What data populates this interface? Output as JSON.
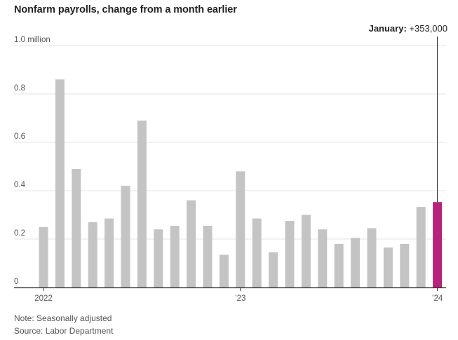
{
  "title": "Nonfarm payrolls, change from a month earlier",
  "colors": {
    "bar": "#c4c4c4",
    "highlight": "#b8237a",
    "grid": "#e6e6e6",
    "axis": "#333333"
  },
  "annotation": {
    "label": "January:",
    "value": "+353,000"
  },
  "notes": {
    "note": "Note: Seasonally adjusted",
    "source": "Source: Labor Department"
  },
  "chart_data": {
    "type": "bar",
    "title": "Nonfarm payrolls, change from a month earlier",
    "xlabel": "",
    "ylabel": "",
    "ylim": [
      0,
      1.0
    ],
    "yticks": [
      {
        "value": 0,
        "label": "0"
      },
      {
        "value": 0.2,
        "label": "0.2"
      },
      {
        "value": 0.4,
        "label": "0.4"
      },
      {
        "value": 0.6,
        "label": "0.6"
      },
      {
        "value": 0.8,
        "label": "0.8"
      },
      {
        "value": 1.0,
        "label": "1.0 million"
      }
    ],
    "xticks": [
      {
        "category": "2022-01",
        "label": "2022"
      },
      {
        "category": "2023-01",
        "label": "’23"
      },
      {
        "category": "2024-01",
        "label": "’24"
      }
    ],
    "categories": [
      "2022-01",
      "2022-02",
      "2022-03",
      "2022-04",
      "2022-05",
      "2022-06",
      "2022-07",
      "2022-08",
      "2022-09",
      "2022-10",
      "2022-11",
      "2022-12",
      "2023-01",
      "2023-02",
      "2023-03",
      "2023-04",
      "2023-05",
      "2023-06",
      "2023-07",
      "2023-08",
      "2023-09",
      "2023-10",
      "2023-11",
      "2023-12",
      "2024-01"
    ],
    "values": [
      0.25,
      0.86,
      0.49,
      0.27,
      0.285,
      0.42,
      0.69,
      0.24,
      0.255,
      0.36,
      0.255,
      0.135,
      0.48,
      0.285,
      0.145,
      0.275,
      0.3,
      0.24,
      0.18,
      0.205,
      0.245,
      0.165,
      0.18,
      0.333,
      0.353
    ],
    "highlight_index": 24,
    "grid": true
  }
}
